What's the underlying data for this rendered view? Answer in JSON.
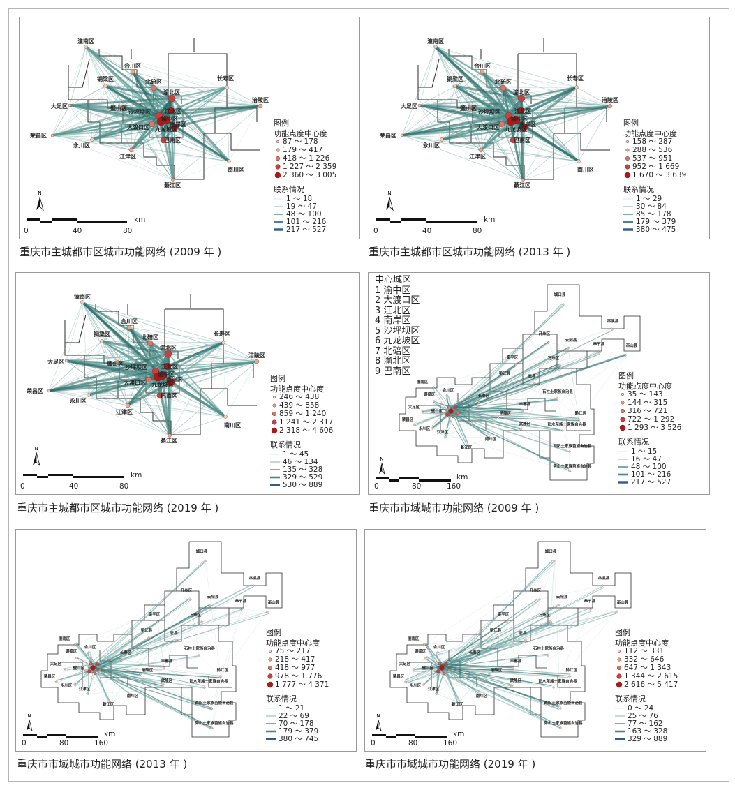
{
  "main_city_labels": {
    "tongnan": "潼南区",
    "hechuan": "合川区",
    "tongliang": "铜梁区",
    "beibei": "北碚区",
    "changshou": "长寿区",
    "yubei": "渝北区",
    "dazu": "大足区",
    "bishan": "璧山区",
    "shapingba": "沙坪坝区",
    "jiangbei": "江北区",
    "fuling": "涪陵区",
    "yuzhong": "渝中区",
    "dadukou": "大渡口区",
    "nanan": "南岸区",
    "jiulongpo": "九龙坡区",
    "rongchang": "荣昌区",
    "yongchuan": "永川区",
    "banan": "巴南区",
    "jiangjin": "江津区",
    "nanchuan": "南川区",
    "qijiang": "綦江区"
  },
  "region_labels": {
    "chengkou": "城口县",
    "wuxi": "巫溪县",
    "kaizhou": "开州区",
    "yunyang": "云阳县",
    "fengjie": "奉节县",
    "wushan": "巫山县",
    "liangping": "梁平区",
    "wanzhou": "万州区",
    "dianjiang": "垫江县",
    "zhong": "忠县",
    "tongnan": "潼南区",
    "hechuan": "合川区",
    "tongliang": "铜梁区",
    "shizhu": "石柱土家族自治县",
    "changshou": "长寿区",
    "fengdu": "丰都县",
    "dazu": "大足区",
    "bishan": "璧山区",
    "fuling": "涪陵区",
    "qianjiang": "黔江区",
    "rongchang": "荣昌区",
    "yongchuan": "永川区",
    "wulong": "武隆区",
    "pengshui": "彭水苗族土家族自治县",
    "jiangjin": "江津区",
    "nanchuan": "南川区",
    "qijiang": "綦江区",
    "youyang": "酉阳土家族苗族自治县",
    "xiushan": "秀山土家族苗族自治县"
  },
  "legend_title": "图例",
  "centrality_title": "功能点度中心度",
  "connection_title": "联系情况",
  "north": "N",
  "unit": "km",
  "panels": [
    {
      "caption": "重庆市主城都市区城市功能网络 (2009 年 )",
      "centrality": [
        "87 ～ 178",
        "179 ～ 417",
        "418 ～ 1 226",
        "1 227 ～ 2 359",
        "2 360 ～ 3 005"
      ],
      "connections": [
        "1 ～ 18",
        "19 ～ 47",
        "48 ～ 100",
        "101 ～ 216",
        "217 ～ 527"
      ],
      "scale": [
        "0",
        "40",
        "80"
      ]
    },
    {
      "caption": "重庆市主城都市区城市功能网络 (2013 年 )",
      "centrality": [
        "158 ～ 287",
        "288 ～ 536",
        "537 ～ 951",
        "952 ～ 1 669",
        "1 670 ～ 3 639"
      ],
      "connections": [
        "1 ～ 29",
        "30 ～ 84",
        "85 ～ 178",
        "179 ～ 379",
        "380 ～ 475"
      ],
      "scale": [
        "0",
        "40",
        "80"
      ]
    },
    {
      "caption": "重庆市主城都市区城市功能网络 (2019 年 )",
      "centrality": [
        "246 ～ 438",
        "439 ～ 858",
        "859 ～ 1 240",
        "1 241 ～ 2 317",
        "2 318 ～ 4 606"
      ],
      "connections": [
        "1 ～ 45",
        "46 ～ 134",
        "135 ～ 328",
        "329 ～ 529",
        "530 ～ 889"
      ],
      "scale": [
        "0",
        "40",
        "80"
      ]
    },
    {
      "caption": "重庆市市域城市功能网络 (2009 年 )",
      "centrality": [
        "35 ～ 143",
        "144 ～ 315",
        "316 ～ 721",
        "722 ～ 1 292",
        "1 293 ～ 3 526"
      ],
      "connections": [
        "1 ～ 15",
        "16 ～ 47",
        "48 ～ 100",
        "101 ～ 216",
        "217 ～ 527"
      ],
      "scale": [
        "0",
        "80",
        "160"
      ]
    },
    {
      "caption": "重庆市市域城市功能网络 (2013 年 )",
      "centrality": [
        "75 ～ 217",
        "218 ～ 417",
        "418 ～ 977",
        "978 ～ 1 776",
        "1 777 ～ 4 371"
      ],
      "connections": [
        "1 ～ 21",
        "22 ～ 69",
        "70 ～ 178",
        "179 ～ 379",
        "380 ～ 745"
      ],
      "scale": [
        "0",
        "80",
        "160"
      ]
    },
    {
      "caption": "重庆市市域城市功能网络 (2019 年 )",
      "centrality": [
        "112 ～ 331",
        "332 ～ 646",
        "647 ～ 1 343",
        "1 344 ～ 2 615",
        "2 616 ～ 5 417"
      ],
      "connections": [
        "0 ～ 24",
        "25 ～ 76",
        "77 ～ 162",
        "163 ～ 328",
        "329 ～ 889"
      ],
      "scale": [
        "0",
        "80",
        "160"
      ]
    }
  ],
  "central_districts": {
    "title": "中心城区",
    "items": [
      "1 渝中区",
      "2 大渡口区",
      "3 江北区",
      "4 南岸区",
      "5 沙坪坝区",
      "6 九龙坡区",
      "7 北碚区",
      "8 渝北区",
      "9 巴南区"
    ]
  },
  "colors": {
    "link": "#5e9c98",
    "link_dark": "#2c6d6a",
    "node_small": "#f0c2a0",
    "node_large": "#b01717",
    "boundary": "#2a2a2a"
  }
}
